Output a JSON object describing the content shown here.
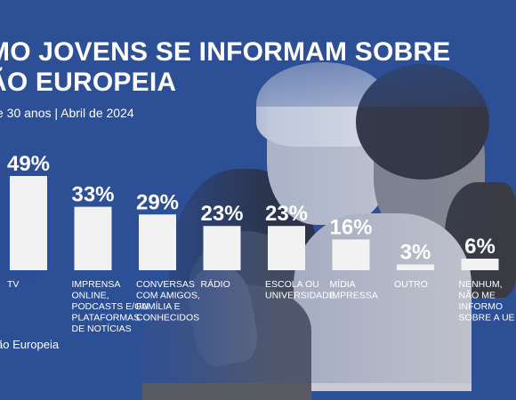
{
  "header": {
    "title_line1": "MO JOVENS SE INFORMAM SOBRE",
    "title_line2": "ÃO EUROPEIA",
    "subtitle": "e 30 anos | Abril de 2024"
  },
  "footer": {
    "source": "ão Europeia"
  },
  "colors": {
    "background": "#2d4f96",
    "bar": "#f2f2f2",
    "text": "#ffffff"
  },
  "chart_data": {
    "type": "bar",
    "categories": [
      [
        "TV"
      ],
      [
        "IMPRENSA",
        "ONLINE,",
        "PODCASTS E/OU",
        "PLATAFORMAS",
        "DE NOTÍCIAS"
      ],
      [
        "CONVERSAS",
        "COM AMIGOS,",
        "FAMÍLIA E",
        "CONHECIDOS"
      ],
      [
        "RÁDIO"
      ],
      [
        "ESCOLA OU",
        "UNIVERSIDADE"
      ],
      [
        "MÍDIA",
        "IMPRESSA"
      ],
      [
        "OUTRO"
      ],
      [
        "NENHUM,",
        "NÃO ME",
        "INFORMO",
        "SOBRE A UE"
      ]
    ],
    "values": [
      49,
      33,
      29,
      23,
      23,
      16,
      3,
      6
    ],
    "value_labels": [
      "49%",
      "33%",
      "29%",
      "23%",
      "23%",
      "16%",
      "3%",
      "6%"
    ],
    "unit": "%",
    "ylim": [
      0,
      49
    ],
    "grid": false
  }
}
